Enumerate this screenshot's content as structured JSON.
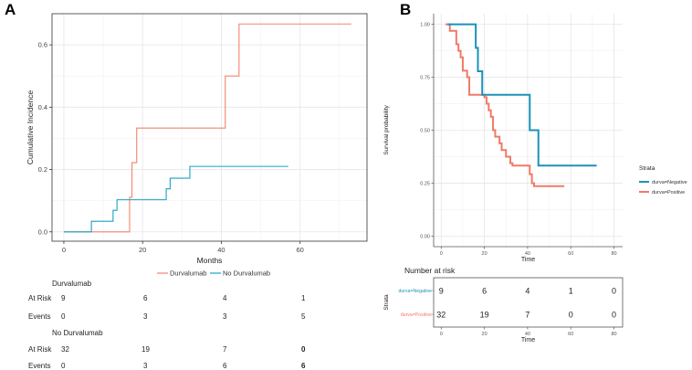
{
  "panel_a": {
    "letter": "A",
    "chart_data": {
      "type": "line",
      "step": true,
      "xlabel": "Months",
      "ylabel": "Cumulative Incidence",
      "xlim": [
        -3,
        77
      ],
      "ylim": [
        -0.03,
        0.7
      ],
      "xticks": [
        0,
        20,
        40,
        60
      ],
      "yticks": [
        0.0,
        0.2,
        0.4,
        0.6
      ],
      "ytick_labels": [
        "0.0",
        "0.2",
        "0.4",
        "0.6"
      ],
      "series": [
        {
          "name": "Durvalumab",
          "color": "#f4836c",
          "x": [
            0,
            16,
            16.7,
            17.3,
            18.5,
            41,
            44.5,
            73
          ],
          "y": [
            0,
            0,
            0.111,
            0.222,
            0.333,
            0.5,
            0.667,
            0.667
          ]
        },
        {
          "name": "No Durvalumab",
          "color": "#19a2c4",
          "x": [
            0,
            7,
            12.5,
            13.5,
            26,
            27,
            32,
            57
          ],
          "y": [
            0,
            0.034,
            0.069,
            0.103,
            0.138,
            0.172,
            0.21,
            0.21
          ]
        }
      ],
      "legend": [
        "Durvalumab",
        "No Durvalumab"
      ],
      "legend_position": "bottom"
    },
    "table": {
      "groups": [
        {
          "title": "Durvalumab",
          "rows": [
            {
              "label": "At Risk",
              "values": [
                "9",
                "6",
                "4",
                "1"
              ]
            },
            {
              "label": "Events",
              "values": [
                "0",
                "3",
                "3",
                "5"
              ]
            }
          ]
        },
        {
          "title": "No Durvalumab",
          "rows": [
            {
              "label": "At Risk",
              "values": [
                "32",
                "19",
                "7",
                "0"
              ]
            },
            {
              "label": "Events",
              "values": [
                "0",
                "3",
                "6",
                "6"
              ]
            }
          ]
        }
      ]
    }
  },
  "panel_b": {
    "letter": "B",
    "chart_data": {
      "type": "line",
      "step": true,
      "xlabel": "Time",
      "ylabel": "Survival probability",
      "xlim": [
        -3.5,
        84
      ],
      "ylim": [
        -0.05,
        1.05
      ],
      "xticks": [
        0,
        20,
        40,
        60,
        80
      ],
      "yticks": [
        0.0,
        0.25,
        0.5,
        0.75,
        1.0
      ],
      "ytick_labels": [
        "0.00",
        "0.25",
        "0.50",
        "0.75",
        "1.00"
      ],
      "series": [
        {
          "name": "durva=Negative",
          "color": "#1d91ba",
          "x": [
            3,
            16,
            17,
            19,
            41,
            45,
            72
          ],
          "y": [
            1.0,
            0.889,
            0.778,
            0.667,
            0.5,
            0.333,
            0.333
          ]
        },
        {
          "name": "durva=Positive",
          "color": "#f07a68",
          "x": [
            2,
            4,
            7,
            8,
            9,
            10,
            12,
            13,
            20,
            21,
            22,
            23,
            24,
            25,
            27,
            28,
            30,
            32,
            33,
            41,
            42,
            43,
            57
          ],
          "y": [
            1.0,
            0.969,
            0.906,
            0.875,
            0.844,
            0.781,
            0.75,
            0.667,
            0.656,
            0.625,
            0.594,
            0.563,
            0.5,
            0.469,
            0.438,
            0.406,
            0.375,
            0.344,
            0.333,
            0.292,
            0.25,
            0.236,
            0.236
          ]
        }
      ],
      "legend_title": "Strata",
      "legend": [
        "durva=Negative",
        "durva=Positive"
      ],
      "legend_position": "right"
    },
    "risk_table": {
      "title": "Number at risk",
      "ylabel": "Strata",
      "xlabel": "Time",
      "xticks": [
        0,
        20,
        40,
        60,
        80
      ],
      "rows": [
        {
          "label": "durva=Negative",
          "color": "#1d91ba",
          "values": [
            "9",
            "6",
            "4",
            "1",
            "0"
          ]
        },
        {
          "label": "durva=Positive",
          "color": "#f07a68",
          "values": [
            "32",
            "19",
            "7",
            "0",
            "0"
          ]
        }
      ]
    }
  }
}
